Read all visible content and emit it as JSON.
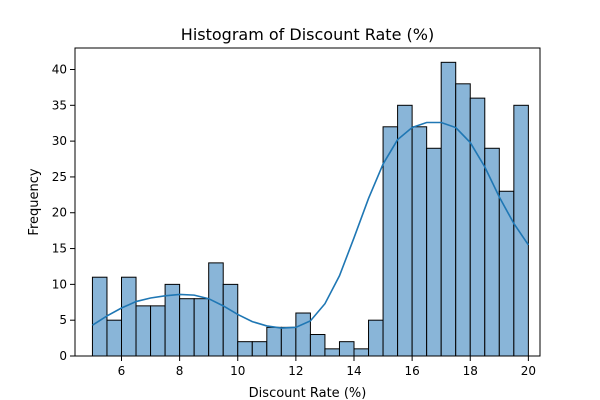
{
  "chart_data": {
    "type": "bar",
    "subtype": "histogram",
    "title": "Histogram of Discount Rate (%)",
    "xlabel": "Discount Rate (%)",
    "ylabel": "Frequency",
    "xlim": [
      4.4,
      20.4
    ],
    "ylim": [
      0,
      43
    ],
    "x_ticks": [
      6,
      8,
      10,
      12,
      14,
      16,
      18,
      20
    ],
    "y_ticks": [
      0,
      5,
      10,
      15,
      20,
      25,
      30,
      35,
      40
    ],
    "bin_start": 5.0,
    "bin_width": 0.5,
    "bins": [
      {
        "x0": 5.0,
        "x1": 5.5,
        "count": 11
      },
      {
        "x0": 5.5,
        "x1": 6.0,
        "count": 5
      },
      {
        "x0": 6.0,
        "x1": 6.5,
        "count": 11
      },
      {
        "x0": 6.5,
        "x1": 7.0,
        "count": 7
      },
      {
        "x0": 7.0,
        "x1": 7.5,
        "count": 7
      },
      {
        "x0": 7.5,
        "x1": 8.0,
        "count": 10
      },
      {
        "x0": 8.0,
        "x1": 8.5,
        "count": 8
      },
      {
        "x0": 8.5,
        "x1": 9.0,
        "count": 8
      },
      {
        "x0": 9.0,
        "x1": 9.5,
        "count": 13
      },
      {
        "x0": 9.5,
        "x1": 10.0,
        "count": 10
      },
      {
        "x0": 10.0,
        "x1": 10.5,
        "count": 2
      },
      {
        "x0": 10.5,
        "x1": 11.0,
        "count": 2
      },
      {
        "x0": 11.0,
        "x1": 11.5,
        "count": 4
      },
      {
        "x0": 11.5,
        "x1": 12.0,
        "count": 4
      },
      {
        "x0": 12.0,
        "x1": 12.5,
        "count": 6
      },
      {
        "x0": 12.5,
        "x1": 13.0,
        "count": 3
      },
      {
        "x0": 13.0,
        "x1": 13.5,
        "count": 1
      },
      {
        "x0": 13.5,
        "x1": 14.0,
        "count": 2
      },
      {
        "x0": 14.0,
        "x1": 14.5,
        "count": 1
      },
      {
        "x0": 14.5,
        "x1": 15.0,
        "count": 5
      },
      {
        "x0": 15.0,
        "x1": 15.5,
        "count": 32
      },
      {
        "x0": 15.5,
        "x1": 16.0,
        "count": 35
      },
      {
        "x0": 16.0,
        "x1": 16.5,
        "count": 32
      },
      {
        "x0": 16.5,
        "x1": 17.0,
        "count": 29
      },
      {
        "x0": 17.0,
        "x1": 17.5,
        "count": 41
      },
      {
        "x0": 17.5,
        "x1": 18.0,
        "count": 38
      },
      {
        "x0": 18.0,
        "x1": 18.5,
        "count": 36
      },
      {
        "x0": 18.5,
        "x1": 19.0,
        "count": 29
      },
      {
        "x0": 19.0,
        "x1": 19.5,
        "count": 23
      },
      {
        "x0": 19.5,
        "x1": 20.0,
        "count": 35
      }
    ],
    "kde_curve": {
      "x": [
        5.0,
        5.5,
        6.0,
        6.5,
        7.0,
        7.5,
        8.0,
        8.5,
        9.0,
        9.5,
        10.0,
        10.5,
        11.0,
        11.5,
        12.0,
        12.5,
        13.0,
        13.5,
        14.0,
        14.5,
        15.0,
        15.5,
        16.0,
        16.5,
        17.0,
        17.5,
        18.0,
        18.5,
        19.0,
        19.5,
        20.0
      ],
      "y": [
        4.3,
        5.6,
        6.7,
        7.6,
        8.1,
        8.4,
        8.6,
        8.5,
        8.0,
        7.0,
        5.8,
        4.8,
        4.2,
        3.9,
        4.0,
        4.9,
        7.3,
        11.2,
        16.5,
        22.0,
        26.8,
        30.2,
        31.9,
        32.6,
        32.6,
        31.9,
        29.8,
        26.4,
        22.2,
        18.5,
        15.5
      ],
      "color": "#1f77b4"
    },
    "bar_color": "#89b5d8",
    "grid": false,
    "legend": "none"
  }
}
